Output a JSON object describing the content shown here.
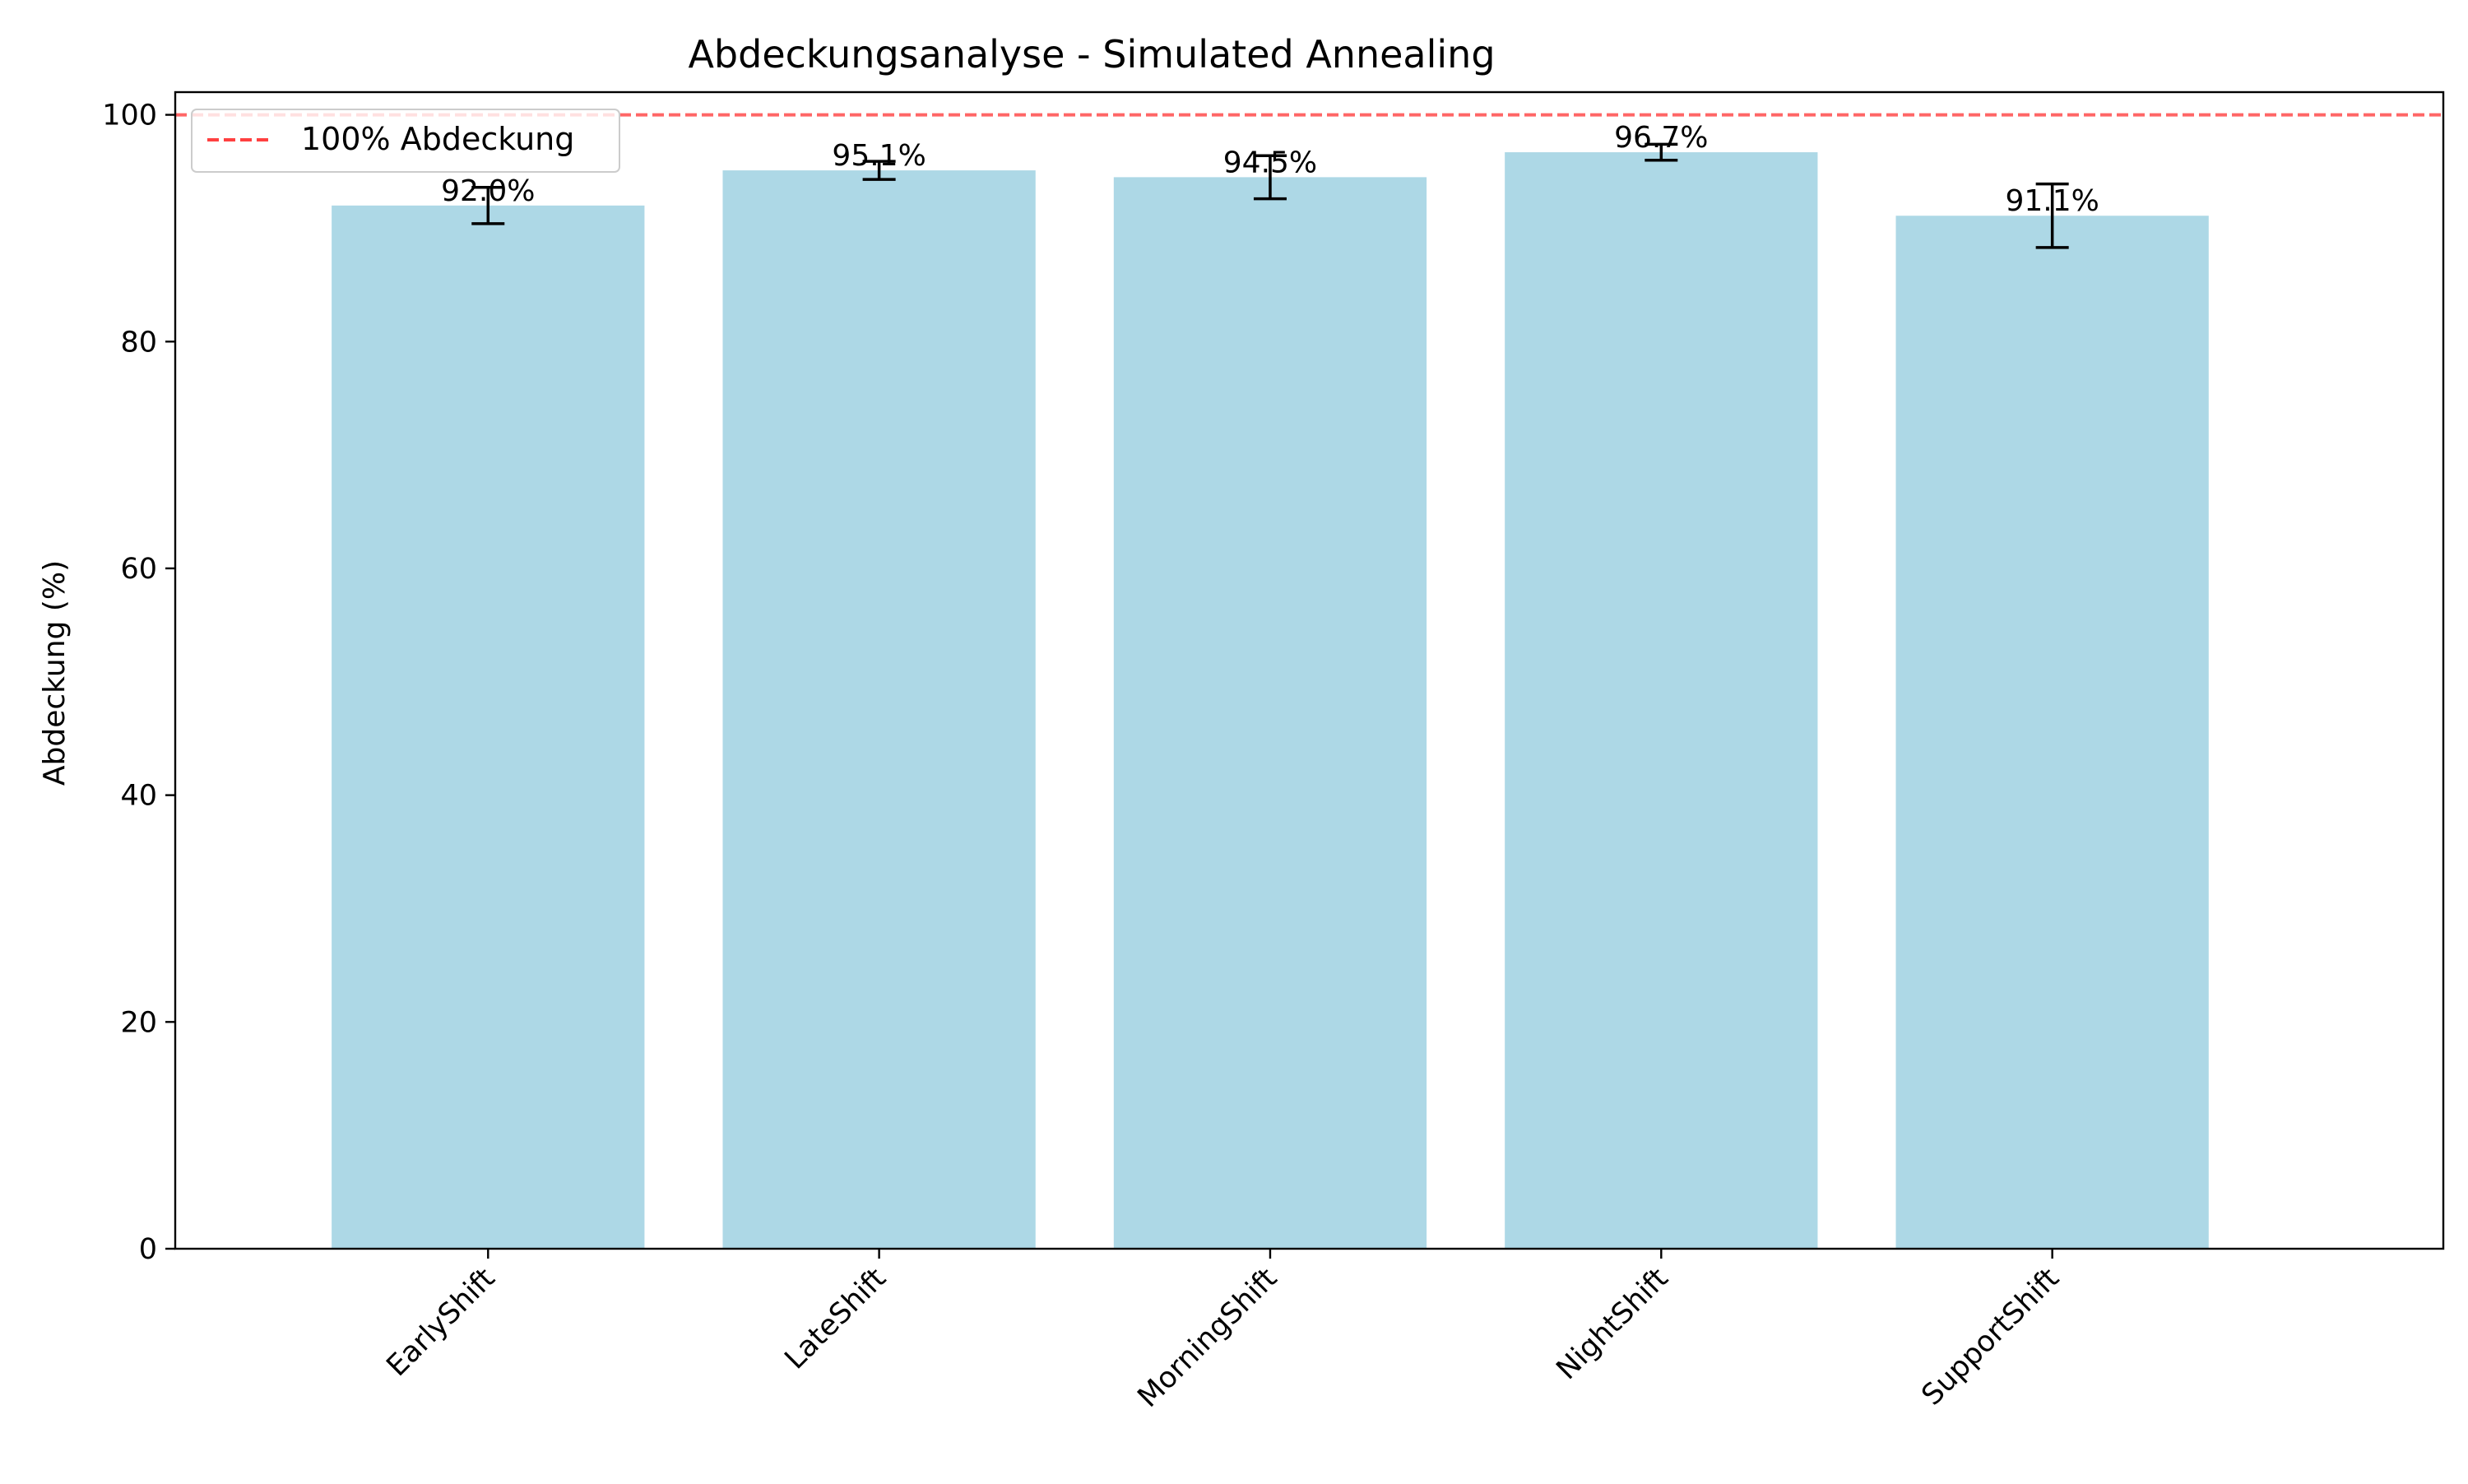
{
  "chart_data": {
    "type": "bar",
    "title": "Abdeckungsanalyse - Simulated Annealing",
    "xlabel": "",
    "ylabel": "Abdeckung (%)",
    "categories": [
      "EarlyShift",
      "LateShift",
      "MorningShift",
      "NightShift",
      "SupportShift"
    ],
    "values": [
      92.0,
      95.1,
      94.5,
      96.7,
      91.1
    ],
    "error": [
      1.6,
      0.8,
      1.9,
      0.7,
      2.8
    ],
    "value_labels": [
      "92.0%",
      "95.1%",
      "94.5%",
      "96.7%",
      "91.1%"
    ],
    "ylim": [
      0,
      102
    ],
    "yticks": [
      0,
      20,
      40,
      60,
      80,
      100
    ],
    "ytick_labels": [
      "0",
      "20",
      "40",
      "60",
      "80",
      "100"
    ],
    "grid": false,
    "bar_color": "#add8e6",
    "reference_line": {
      "value": 100,
      "label": "100% Abdeckung",
      "color": "#ff4040",
      "style": "dashed"
    },
    "legend": {
      "position": "top-left",
      "entries": [
        "100% Abdeckung"
      ]
    }
  }
}
